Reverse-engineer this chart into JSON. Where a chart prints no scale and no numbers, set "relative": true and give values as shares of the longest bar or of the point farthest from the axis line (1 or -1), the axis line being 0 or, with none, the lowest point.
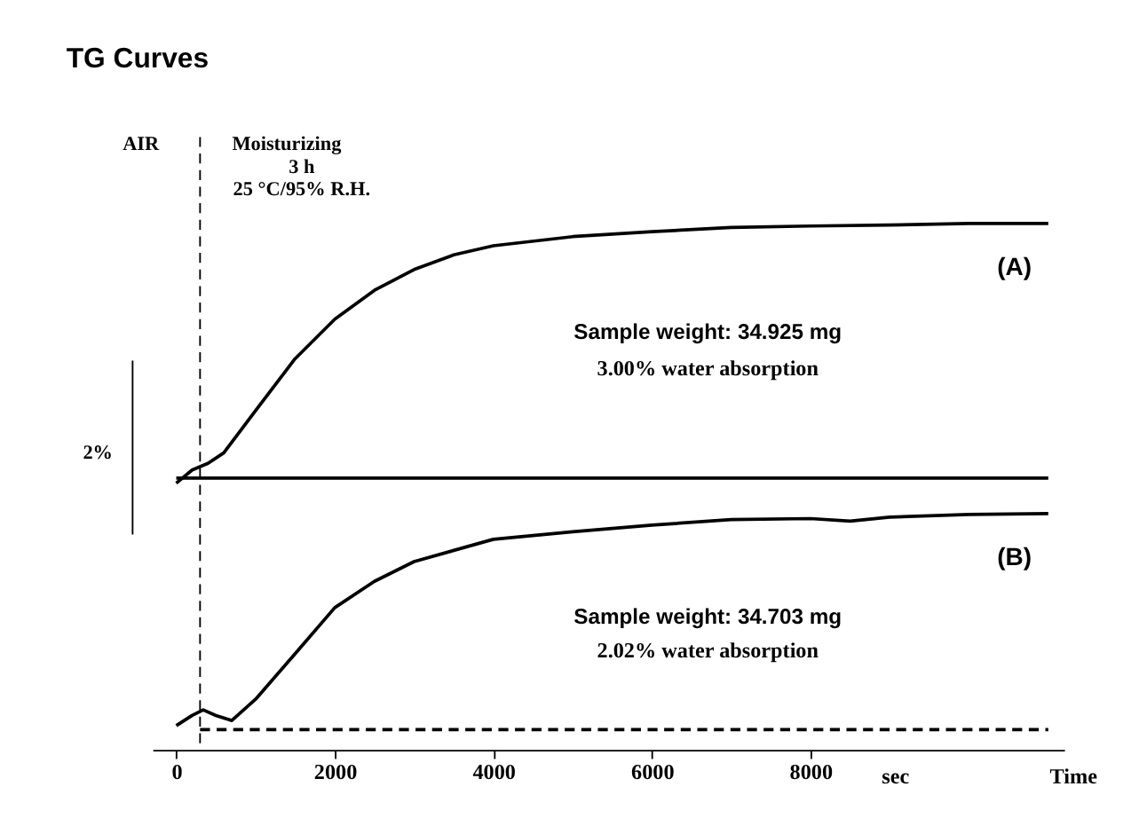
{
  "chart_data": {
    "type": "line",
    "title": "TG Curves",
    "relative": true,
    "xlabel": "Time",
    "xlim": [
      -300,
      11200
    ],
    "xticks": [
      0,
      2000,
      4000,
      6000,
      8000
    ],
    "grid": false,
    "marker": "none",
    "tick_labels": "x",
    "series": [
      {
        "name": "(A)",
        "color": "#000000",
        "line_style": "solid",
        "x": [
          0,
          200,
          400,
          600,
          1000,
          1500,
          2000,
          2500,
          3000,
          3500,
          4000,
          5000,
          6000,
          7000,
          8000,
          9000,
          10000,
          11000
        ],
        "values": [
          0.487,
          0.513,
          0.526,
          0.547,
          0.63,
          0.733,
          0.811,
          0.868,
          0.909,
          0.938,
          0.956,
          0.974,
          0.984,
          0.992,
          0.995,
          0.997,
          1,
          1
        ]
      },
      {
        "color": "#000000",
        "line_style": "solid",
        "x": [
          0,
          11000
        ],
        "values": [
          0.497,
          0.497
        ]
      },
      {
        "name": "(B)",
        "color": "#000000",
        "line_style": "solid",
        "x": [
          0,
          200,
          340,
          500,
          700,
          1000,
          1500,
          2000,
          2500,
          3000,
          4000,
          5000,
          6000,
          7000,
          8000,
          8500,
          9000,
          10000,
          11000
        ],
        "values": [
          0.008,
          0.028,
          0.039,
          0.028,
          0.018,
          0.06,
          0.15,
          0.241,
          0.293,
          0.332,
          0.376,
          0.391,
          0.404,
          0.415,
          0.417,
          0.412,
          0.42,
          0.425,
          0.427
        ]
      },
      {
        "color": "#000000",
        "line_style": "dashed",
        "x": [
          300,
          11000
        ],
        "values": [
          0,
          0
        ]
      }
    ],
    "ref_lines": [
      {
        "axis": "x",
        "value": 300,
        "label": null,
        "line_style": "dashed",
        "color": "#000000"
      }
    ],
    "annotations": [
      "AIR",
      "Moisturizing",
      "3 h",
      "25 °C/95% R.H.",
      "Sample weight: 34.925 mg",
      "3.00% water absorption",
      "Sample weight: 34.703 mg",
      "2.02% water absorption",
      "2%",
      "sec"
    ]
  }
}
